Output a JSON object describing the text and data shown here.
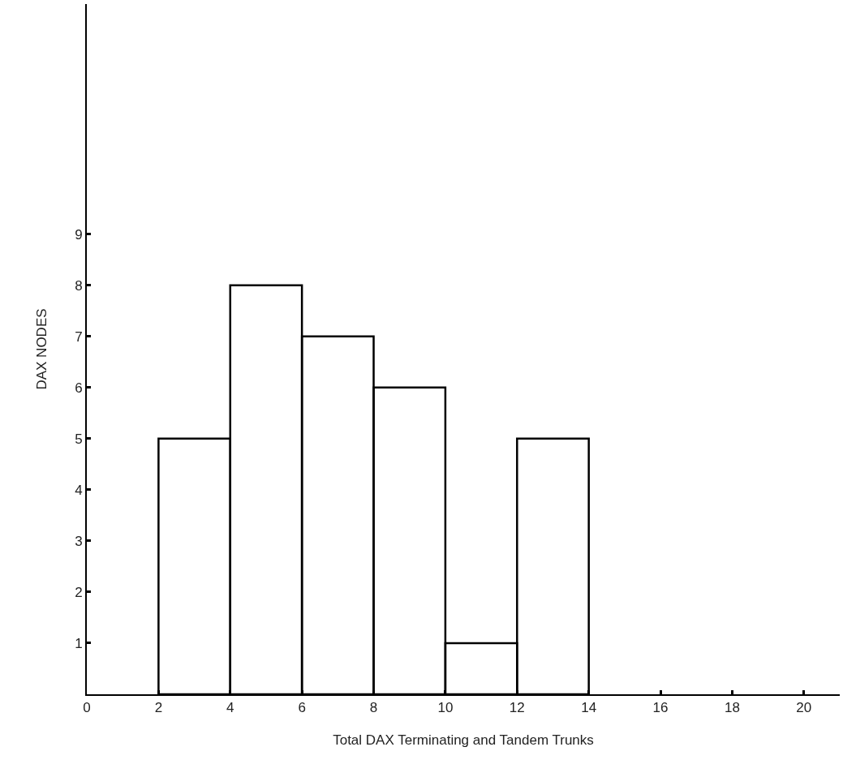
{
  "chart_data": {
    "type": "histogram",
    "xlabel": "Total DAX Terminating and Tandem Trunks",
    "ylabel": "DAX NODES",
    "bins": [
      2,
      4,
      6,
      8,
      10,
      12,
      14
    ],
    "values": [
      5,
      8,
      7,
      6,
      1,
      5
    ],
    "color": "#000000",
    "xlim": [
      0,
      21
    ],
    "xticks": [
      0,
      2,
      4,
      6,
      8,
      10,
      12,
      14,
      16,
      18,
      20
    ],
    "ylim": [
      0,
      13.5
    ],
    "yticks": [
      1,
      2,
      3,
      4,
      5,
      6,
      7,
      8,
      9
    ],
    "line_style": "solid"
  }
}
